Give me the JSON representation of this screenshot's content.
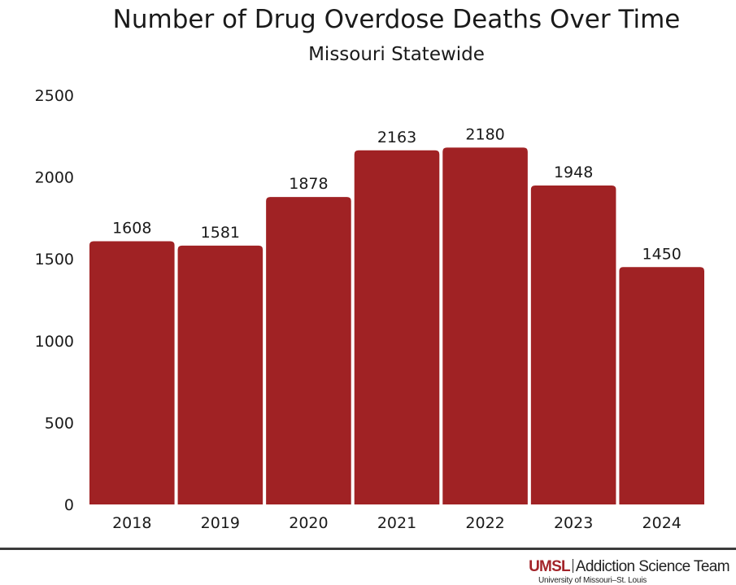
{
  "chart_data": {
    "type": "bar",
    "title": "Number of Drug Overdose Deaths Over Time",
    "subtitle": "Missouri Statewide",
    "categories": [
      "2018",
      "2019",
      "2020",
      "2021",
      "2022",
      "2023",
      "2024"
    ],
    "values": [
      1608,
      1581,
      1878,
      2163,
      2180,
      1948,
      1450
    ],
    "value_labels": [
      "1608",
      "1581",
      "1878",
      "2163",
      "2180",
      "1948",
      "1450"
    ],
    "yticks": [
      0,
      500,
      1000,
      1500,
      2000,
      2500
    ],
    "ytick_labels": [
      "0",
      "500",
      "1000",
      "1500",
      "2000",
      "2500"
    ],
    "ylim": [
      0,
      2500
    ],
    "xlabel": "",
    "ylabel": "",
    "grid": false,
    "colors": {
      "bar": "#a02224",
      "text": "#1a1a1a"
    }
  },
  "branding": {
    "brand_short": "UMSL",
    "team_name": "Addiction Science Team",
    "university": "University of Missouri–St. Louis"
  }
}
